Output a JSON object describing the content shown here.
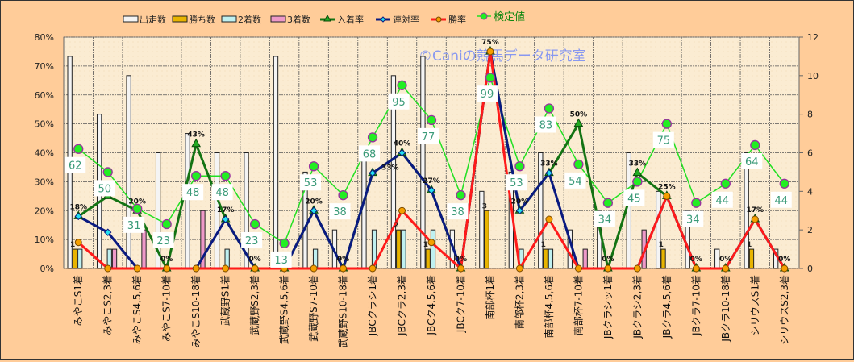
{
  "chart_data": {
    "type": "bar+line",
    "watermark": "©Caniの競馬データ研究室",
    "categories": [
      "みやこS1着",
      "みやこS2,3着",
      "みやこS4,5,6着",
      "みやこS7-10着",
      "みやこS10-18着",
      "武蔵野S1着",
      "武蔵野S2,3着",
      "武蔵野S4,5,6着",
      "武蔵野S7-10着",
      "武蔵野S10-18着",
      "JBCクラシ1着",
      "JBCクラ2,3着",
      "JBCク4,5,6着",
      "JBCク7-10着",
      "南部杯1着",
      "南部杯2,3着",
      "南部杯4,5,6着",
      "南部杯7-10着",
      "JBクラシッ1着",
      "JBクラシ2,3着",
      "JBクラ4,5,6着",
      "JBクラ7-10着",
      "JBクラ10-18着",
      "シリウスS1着",
      "シリウスS2,3着"
    ],
    "left_axis": {
      "ticks": [
        "0%",
        "10%",
        "20%",
        "30%",
        "40%",
        "50%",
        "60%",
        "70%",
        "80%"
      ],
      "range": [
        0,
        80
      ]
    },
    "right_axis": {
      "ticks": [
        "0",
        "2",
        "4",
        "6",
        "8",
        "10",
        "12"
      ],
      "range": [
        0,
        12
      ]
    },
    "bar_series": [
      {
        "name": "出走数",
        "color": "#f4f4f4",
        "values": [
          11,
          8,
          10,
          6,
          7,
          6,
          6,
          11,
          5,
          2,
          6,
          10,
          11,
          2,
          4,
          5,
          6,
          2,
          3,
          6,
          4,
          3,
          1,
          6,
          1
        ]
      },
      {
        "name": "勝ち数",
        "color": "#e8b400",
        "values": [
          1,
          0,
          0,
          0,
          0,
          0,
          0,
          0,
          0,
          0,
          0,
          2,
          1,
          0,
          3,
          0,
          1,
          0,
          0,
          0,
          1,
          0,
          0,
          1,
          0
        ]
      },
      {
        "name": "2着数",
        "color": "#bff0f0",
        "values": [
          1,
          1,
          0,
          0,
          0,
          1,
          0,
          0,
          1,
          0,
          2,
          2,
          2,
          0,
          0,
          1,
          1,
          0,
          0,
          0,
          0,
          0,
          0,
          0,
          0
        ]
      },
      {
        "name": "3着数",
        "color": "#ee99c8",
        "values": [
          0,
          1,
          2,
          0,
          3,
          0,
          0,
          0,
          0,
          0,
          0,
          0,
          0,
          0,
          0,
          0,
          0,
          1,
          0,
          2,
          0,
          0,
          0,
          0,
          0
        ]
      }
    ],
    "line_series": [
      {
        "name": "入着率",
        "color": "#137313",
        "marker": "triangle",
        "values": [
          18,
          25,
          20,
          0,
          43,
          17,
          0,
          0,
          20,
          0,
          33,
          40,
          27,
          0,
          75,
          20,
          33,
          50,
          0,
          33,
          25,
          0,
          0,
          17,
          0
        ]
      },
      {
        "name": "連対率",
        "color": "#0a1a80",
        "marker": "diamond",
        "values": [
          18,
          12.5,
          0,
          0,
          0,
          17,
          0,
          0,
          20,
          0,
          33,
          40,
          27,
          0,
          75,
          20,
          33,
          0,
          0,
          0,
          25,
          0,
          0,
          17,
          0
        ]
      },
      {
        "name": "勝率",
        "color": "#ff1a1a",
        "marker": "circle",
        "values": [
          9,
          0,
          0,
          0,
          0,
          0,
          0,
          0,
          0,
          0,
          0,
          20,
          9,
          0,
          75,
          0,
          17,
          0,
          0,
          0,
          25,
          0,
          0,
          17,
          0
        ]
      }
    ],
    "test_series": {
      "name": "検定値",
      "color": "#22e022",
      "values": [
        62,
        50,
        31,
        23,
        48,
        48,
        23,
        13,
        53,
        38,
        68,
        95,
        77,
        38,
        99,
        53,
        83,
        54,
        34,
        45,
        75,
        34,
        44,
        64,
        44
      ]
    },
    "win_labels": [
      "1",
      "",
      "",
      "",
      "",
      "",
      "",
      "",
      "",
      "",
      "",
      "2",
      "1",
      "",
      "3",
      "",
      "1",
      "",
      "",
      "",
      "1",
      "",
      "",
      "1",
      ""
    ],
    "rate_labels": [
      "18%",
      "",
      "20%",
      "0%",
      "43%",
      "17%",
      "0%",
      "",
      "20%",
      "0%",
      "33%",
      "40%",
      "27%",
      "0%",
      "75%",
      "20%",
      "33%",
      "50%",
      "0%",
      "33%",
      "25%",
      "0%",
      "0%",
      "17%",
      "0%"
    ],
    "legend": {
      "items": [
        "出走数",
        "勝ち数",
        "2着数",
        "3着数",
        "入着率",
        "連対率",
        "勝率"
      ],
      "test_item": "検定値"
    }
  }
}
